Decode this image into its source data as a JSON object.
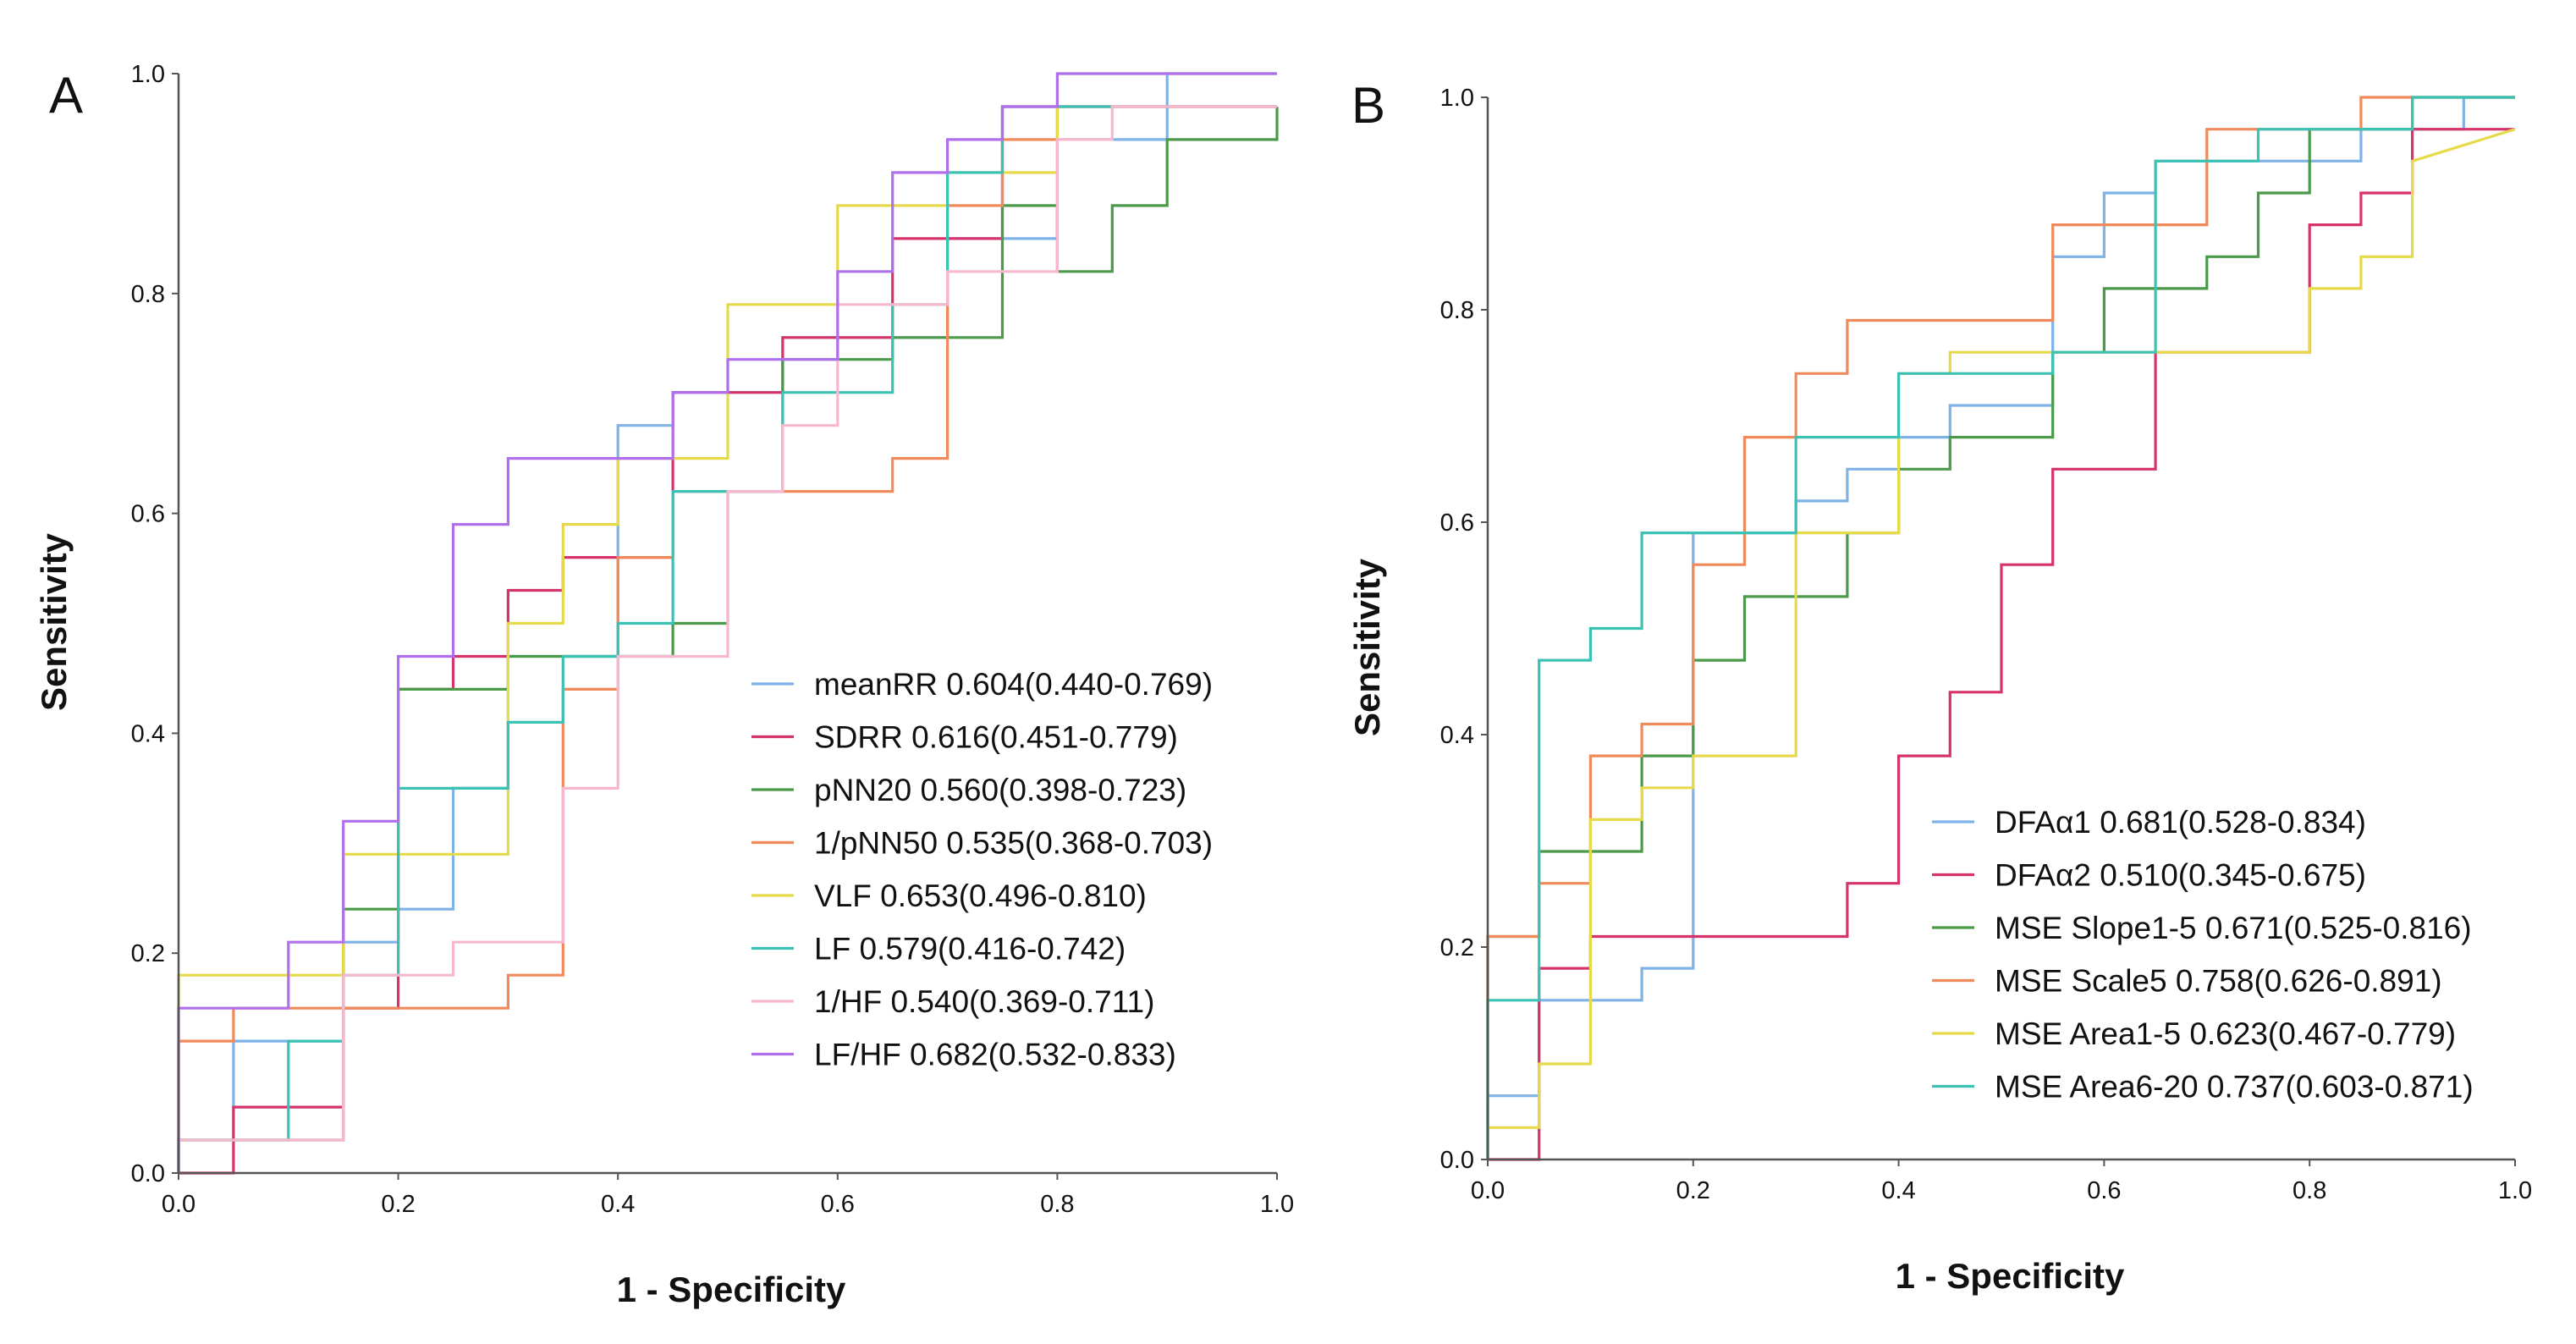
{
  "chart_data": [
    {
      "type": "line",
      "panel_label": "A",
      "xlabel": "1 - Specificity",
      "ylabel": "Sensitivity",
      "xlim": [
        0.0,
        1.0
      ],
      "ylim": [
        0.0,
        1.0
      ],
      "x_ticks": [
        "0.0",
        "0.2",
        "0.4",
        "0.6",
        "0.8",
        "1.0"
      ],
      "y_ticks": [
        "0.0",
        "0.2",
        "0.4",
        "0.6",
        "0.8",
        "1.0"
      ],
      "legend_position": "bottom-right",
      "series": [
        {
          "name": "meanRR",
          "auc": "0.604(0.440-0.769)",
          "color": "#7fb2e6",
          "x": [
            0,
            0,
            0.05,
            0.05,
            0.15,
            0.15,
            0.2,
            0.2,
            0.25,
            0.25,
            0.3,
            0.3,
            0.4,
            0.4,
            0.45,
            0.45,
            0.55,
            0.55,
            0.7,
            0.7,
            0.8,
            0.8,
            0.9,
            0.9,
            0.95,
            0.95,
            1.0
          ],
          "y": [
            0,
            0.03,
            0.03,
            0.12,
            0.12,
            0.21,
            0.21,
            0.24,
            0.24,
            0.35,
            0.35,
            0.47,
            0.47,
            0.68,
            0.68,
            0.71,
            0.71,
            0.76,
            0.76,
            0.85,
            0.85,
            0.94,
            0.94,
            1.0,
            1.0,
            1.0,
            1.0
          ]
        },
        {
          "name": "SDRR",
          "auc": "0.616(0.451-0.779)",
          "color": "#d6336c",
          "x": [
            0,
            0.05,
            0.05,
            0.15,
            0.15,
            0.2,
            0.2,
            0.25,
            0.25,
            0.3,
            0.3,
            0.35,
            0.35,
            0.4,
            0.4,
            0.45,
            0.45,
            0.55,
            0.55,
            0.65,
            0.65,
            0.7,
            0.7,
            0.75,
            0.75,
            0.8,
            0.8,
            1.0
          ],
          "y": [
            0,
            0,
            0.06,
            0.06,
            0.15,
            0.15,
            0.44,
            0.44,
            0.47,
            0.47,
            0.53,
            0.53,
            0.56,
            0.56,
            0.56,
            0.56,
            0.71,
            0.71,
            0.76,
            0.76,
            0.85,
            0.85,
            0.85,
            0.85,
            0.97,
            0.97,
            0.97,
            0.97
          ]
        },
        {
          "name": "pNN20",
          "auc": "0.560(0.398-0.723)",
          "color": "#4a9a4a",
          "x": [
            0,
            0,
            0.15,
            0.15,
            0.2,
            0.2,
            0.25,
            0.25,
            0.3,
            0.3,
            0.45,
            0.45,
            0.5,
            0.5,
            0.55,
            0.55,
            0.65,
            0.65,
            0.75,
            0.75,
            0.8,
            0.8,
            0.85,
            0.85,
            0.9,
            0.9,
            1.0,
            1.0
          ],
          "y": [
            0,
            0.03,
            0.03,
            0.24,
            0.24,
            0.44,
            0.44,
            0.44,
            0.44,
            0.47,
            0.47,
            0.5,
            0.5,
            0.62,
            0.62,
            0.74,
            0.74,
            0.76,
            0.76,
            0.88,
            0.88,
            0.82,
            0.82,
            0.88,
            0.88,
            0.94,
            0.94,
            0.97
          ]
        },
        {
          "name": "1/pNN50",
          "auc": "0.535(0.368-0.703)",
          "color": "#f08a5a",
          "x": [
            0,
            0,
            0.05,
            0.05,
            0.3,
            0.3,
            0.35,
            0.35,
            0.4,
            0.4,
            0.45,
            0.45,
            0.55,
            0.55,
            0.65,
            0.65,
            0.7,
            0.7,
            0.75,
            0.75,
            0.8,
            0.8,
            0.85,
            0.85,
            1.0
          ],
          "y": [
            0,
            0.12,
            0.12,
            0.15,
            0.15,
            0.18,
            0.18,
            0.44,
            0.44,
            0.56,
            0.56,
            0.62,
            0.62,
            0.62,
            0.62,
            0.65,
            0.65,
            0.88,
            0.88,
            0.94,
            0.94,
            0.97,
            0.97,
            0.97,
            0.97
          ]
        },
        {
          "name": "VLF",
          "auc": "0.653(0.496-0.810)",
          "color": "#e6d94a",
          "x": [
            0,
            0,
            0.15,
            0.15,
            0.3,
            0.3,
            0.35,
            0.35,
            0.4,
            0.4,
            0.5,
            0.5,
            0.6,
            0.6,
            0.65,
            0.65,
            0.7,
            0.7,
            0.8,
            0.8,
            1.0
          ],
          "y": [
            0,
            0.18,
            0.18,
            0.29,
            0.29,
            0.5,
            0.5,
            0.59,
            0.59,
            0.65,
            0.65,
            0.79,
            0.79,
            0.88,
            0.88,
            0.88,
            0.88,
            0.91,
            0.91,
            1.0,
            1.0
          ]
        },
        {
          "name": "LF",
          "auc": "0.579(0.416-0.742)",
          "color": "#3cc2b4",
          "x": [
            0,
            0,
            0.1,
            0.1,
            0.15,
            0.15,
            0.2,
            0.2,
            0.3,
            0.3,
            0.35,
            0.35,
            0.4,
            0.4,
            0.45,
            0.45,
            0.5,
            0.5,
            0.55,
            0.55,
            0.65,
            0.65,
            0.7,
            0.7,
            0.75,
            0.75,
            0.8,
            0.8,
            1.0
          ],
          "y": [
            0,
            0.03,
            0.03,
            0.12,
            0.12,
            0.18,
            0.18,
            0.35,
            0.35,
            0.41,
            0.41,
            0.47,
            0.47,
            0.5,
            0.5,
            0.62,
            0.62,
            0.62,
            0.62,
            0.71,
            0.71,
            0.79,
            0.79,
            0.91,
            0.91,
            0.97,
            0.97,
            0.97,
            0.97
          ]
        },
        {
          "name": "1/HF",
          "auc": "0.540(0.369-0.711)",
          "color": "#f7b8cf",
          "x": [
            0,
            0,
            0.15,
            0.15,
            0.25,
            0.25,
            0.35,
            0.35,
            0.4,
            0.4,
            0.5,
            0.5,
            0.55,
            0.55,
            0.6,
            0.6,
            0.7,
            0.7,
            0.8,
            0.8,
            0.85,
            0.85,
            1.0
          ],
          "y": [
            0,
            0.03,
            0.03,
            0.18,
            0.18,
            0.21,
            0.21,
            0.35,
            0.35,
            0.47,
            0.47,
            0.62,
            0.62,
            0.68,
            0.68,
            0.79,
            0.79,
            0.82,
            0.82,
            0.94,
            0.94,
            0.97,
            0.97
          ]
        },
        {
          "name": "LF/HF",
          "auc": "0.682(0.532-0.833)",
          "color": "#b070ee",
          "x": [
            0,
            0,
            0.1,
            0.1,
            0.15,
            0.15,
            0.2,
            0.2,
            0.25,
            0.25,
            0.3,
            0.3,
            0.4,
            0.4,
            0.45,
            0.45,
            0.5,
            0.5,
            0.6,
            0.6,
            0.65,
            0.65,
            0.7,
            0.7,
            0.75,
            0.75,
            0.8,
            0.8,
            1.0
          ],
          "y": [
            0,
            0.15,
            0.15,
            0.21,
            0.21,
            0.32,
            0.32,
            0.47,
            0.47,
            0.59,
            0.59,
            0.65,
            0.65,
            0.65,
            0.65,
            0.71,
            0.71,
            0.74,
            0.74,
            0.82,
            0.82,
            0.91,
            0.91,
            0.94,
            0.94,
            0.97,
            0.97,
            1.0,
            1.0
          ]
        }
      ]
    },
    {
      "type": "line",
      "panel_label": "B",
      "xlabel": "1 - Specificity",
      "ylabel": "Sensitivity",
      "xlim": [
        0.0,
        1.0
      ],
      "ylim": [
        0.0,
        1.0
      ],
      "x_ticks": [
        "0.0",
        "0.2",
        "0.4",
        "0.6",
        "0.8",
        "1.0"
      ],
      "y_ticks": [
        "0.0",
        "0.2",
        "0.4",
        "0.6",
        "0.8",
        "1.0"
      ],
      "legend_position": "bottom-right",
      "series": [
        {
          "name": "DFAα1",
          "auc": "0.681(0.528-0.834)",
          "color": "#7fb2e6",
          "x": [
            0,
            0,
            0.05,
            0.05,
            0.15,
            0.15,
            0.2,
            0.2,
            0.25,
            0.25,
            0.3,
            0.3,
            0.35,
            0.35,
            0.4,
            0.4,
            0.45,
            0.45,
            0.55,
            0.55,
            0.6,
            0.6,
            0.65,
            0.65,
            0.85,
            0.85,
            0.95,
            0.95,
            1.0
          ],
          "y": [
            0,
            0.06,
            0.06,
            0.15,
            0.15,
            0.18,
            0.18,
            0.59,
            0.59,
            0.59,
            0.59,
            0.62,
            0.62,
            0.65,
            0.65,
            0.68,
            0.68,
            0.71,
            0.71,
            0.85,
            0.85,
            0.91,
            0.91,
            0.94,
            0.94,
            0.97,
            0.97,
            1.0,
            1.0
          ]
        },
        {
          "name": "DFAα2",
          "auc": "0.510(0.345-0.675)",
          "color": "#d6336c",
          "x": [
            0,
            0.05,
            0.05,
            0.1,
            0.1,
            0.35,
            0.35,
            0.4,
            0.4,
            0.45,
            0.45,
            0.5,
            0.5,
            0.55,
            0.55,
            0.65,
            0.65,
            0.8,
            0.8,
            0.85,
            0.85,
            0.9,
            0.9,
            1.0
          ],
          "y": [
            0,
            0,
            0.18,
            0.18,
            0.21,
            0.21,
            0.26,
            0.26,
            0.38,
            0.38,
            0.44,
            0.44,
            0.56,
            0.56,
            0.65,
            0.65,
            0.76,
            0.76,
            0.88,
            0.88,
            0.91,
            0.91,
            0.97,
            0.97
          ]
        },
        {
          "name": "MSE Slope1-5",
          "auc": "0.671(0.525-0.816)",
          "color": "#4a9a4a",
          "x": [
            0,
            0,
            0.05,
            0.05,
            0.15,
            0.15,
            0.2,
            0.2,
            0.25,
            0.25,
            0.35,
            0.35,
            0.4,
            0.4,
            0.45,
            0.45,
            0.55,
            0.55,
            0.6,
            0.6,
            0.7,
            0.7,
            0.75,
            0.75,
            0.8,
            0.8,
            0.9,
            0.9,
            1.0
          ],
          "y": [
            0,
            0.21,
            0.21,
            0.29,
            0.29,
            0.38,
            0.38,
            0.47,
            0.47,
            0.53,
            0.53,
            0.59,
            0.59,
            0.65,
            0.65,
            0.68,
            0.68,
            0.76,
            0.76,
            0.82,
            0.82,
            0.85,
            0.85,
            0.91,
            0.91,
            0.97,
            0.97,
            1.0,
            1.0
          ]
        },
        {
          "name": "MSE Scale5",
          "auc": "0.758(0.626-0.891)",
          "color": "#f08a5a",
          "x": [
            0,
            0,
            0.05,
            0.05,
            0.1,
            0.1,
            0.15,
            0.15,
            0.2,
            0.2,
            0.25,
            0.25,
            0.3,
            0.3,
            0.35,
            0.35,
            0.55,
            0.55,
            0.7,
            0.7,
            0.85,
            0.85,
            1.0
          ],
          "y": [
            0,
            0.21,
            0.21,
            0.26,
            0.26,
            0.38,
            0.38,
            0.41,
            0.41,
            0.56,
            0.56,
            0.68,
            0.68,
            0.74,
            0.74,
            0.79,
            0.79,
            0.88,
            0.88,
            0.97,
            0.97,
            1.0,
            1.0
          ]
        },
        {
          "name": "MSE Area1-5",
          "auc": "0.623(0.467-0.779)",
          "color": "#e6d94a",
          "x": [
            0,
            0,
            0.05,
            0.05,
            0.1,
            0.1,
            0.15,
            0.15,
            0.2,
            0.2,
            0.3,
            0.3,
            0.4,
            0.4,
            0.45,
            0.45,
            0.55,
            0.55,
            0.8,
            0.8,
            0.85,
            0.85,
            0.9,
            0.9,
            1.0
          ],
          "y": [
            0,
            0.03,
            0.03,
            0.09,
            0.09,
            0.32,
            0.32,
            0.35,
            0.35,
            0.38,
            0.38,
            0.59,
            0.59,
            0.74,
            0.74,
            0.76,
            0.76,
            0.76,
            0.76,
            0.82,
            0.82,
            0.85,
            0.85,
            0.94,
            0.97
          ]
        },
        {
          "name": "MSE Area6-20",
          "auc": "0.737(0.603-0.871)",
          "color": "#3cc2b4",
          "x": [
            0,
            0,
            0.05,
            0.05,
            0.1,
            0.1,
            0.15,
            0.15,
            0.3,
            0.3,
            0.4,
            0.4,
            0.55,
            0.55,
            0.65,
            0.65,
            0.75,
            0.75,
            0.9,
            0.9,
            1.0
          ],
          "y": [
            0,
            0.15,
            0.15,
            0.47,
            0.47,
            0.5,
            0.5,
            0.59,
            0.59,
            0.68,
            0.68,
            0.74,
            0.74,
            0.76,
            0.76,
            0.94,
            0.94,
            0.97,
            0.97,
            1.0,
            1.0
          ]
        }
      ]
    }
  ]
}
